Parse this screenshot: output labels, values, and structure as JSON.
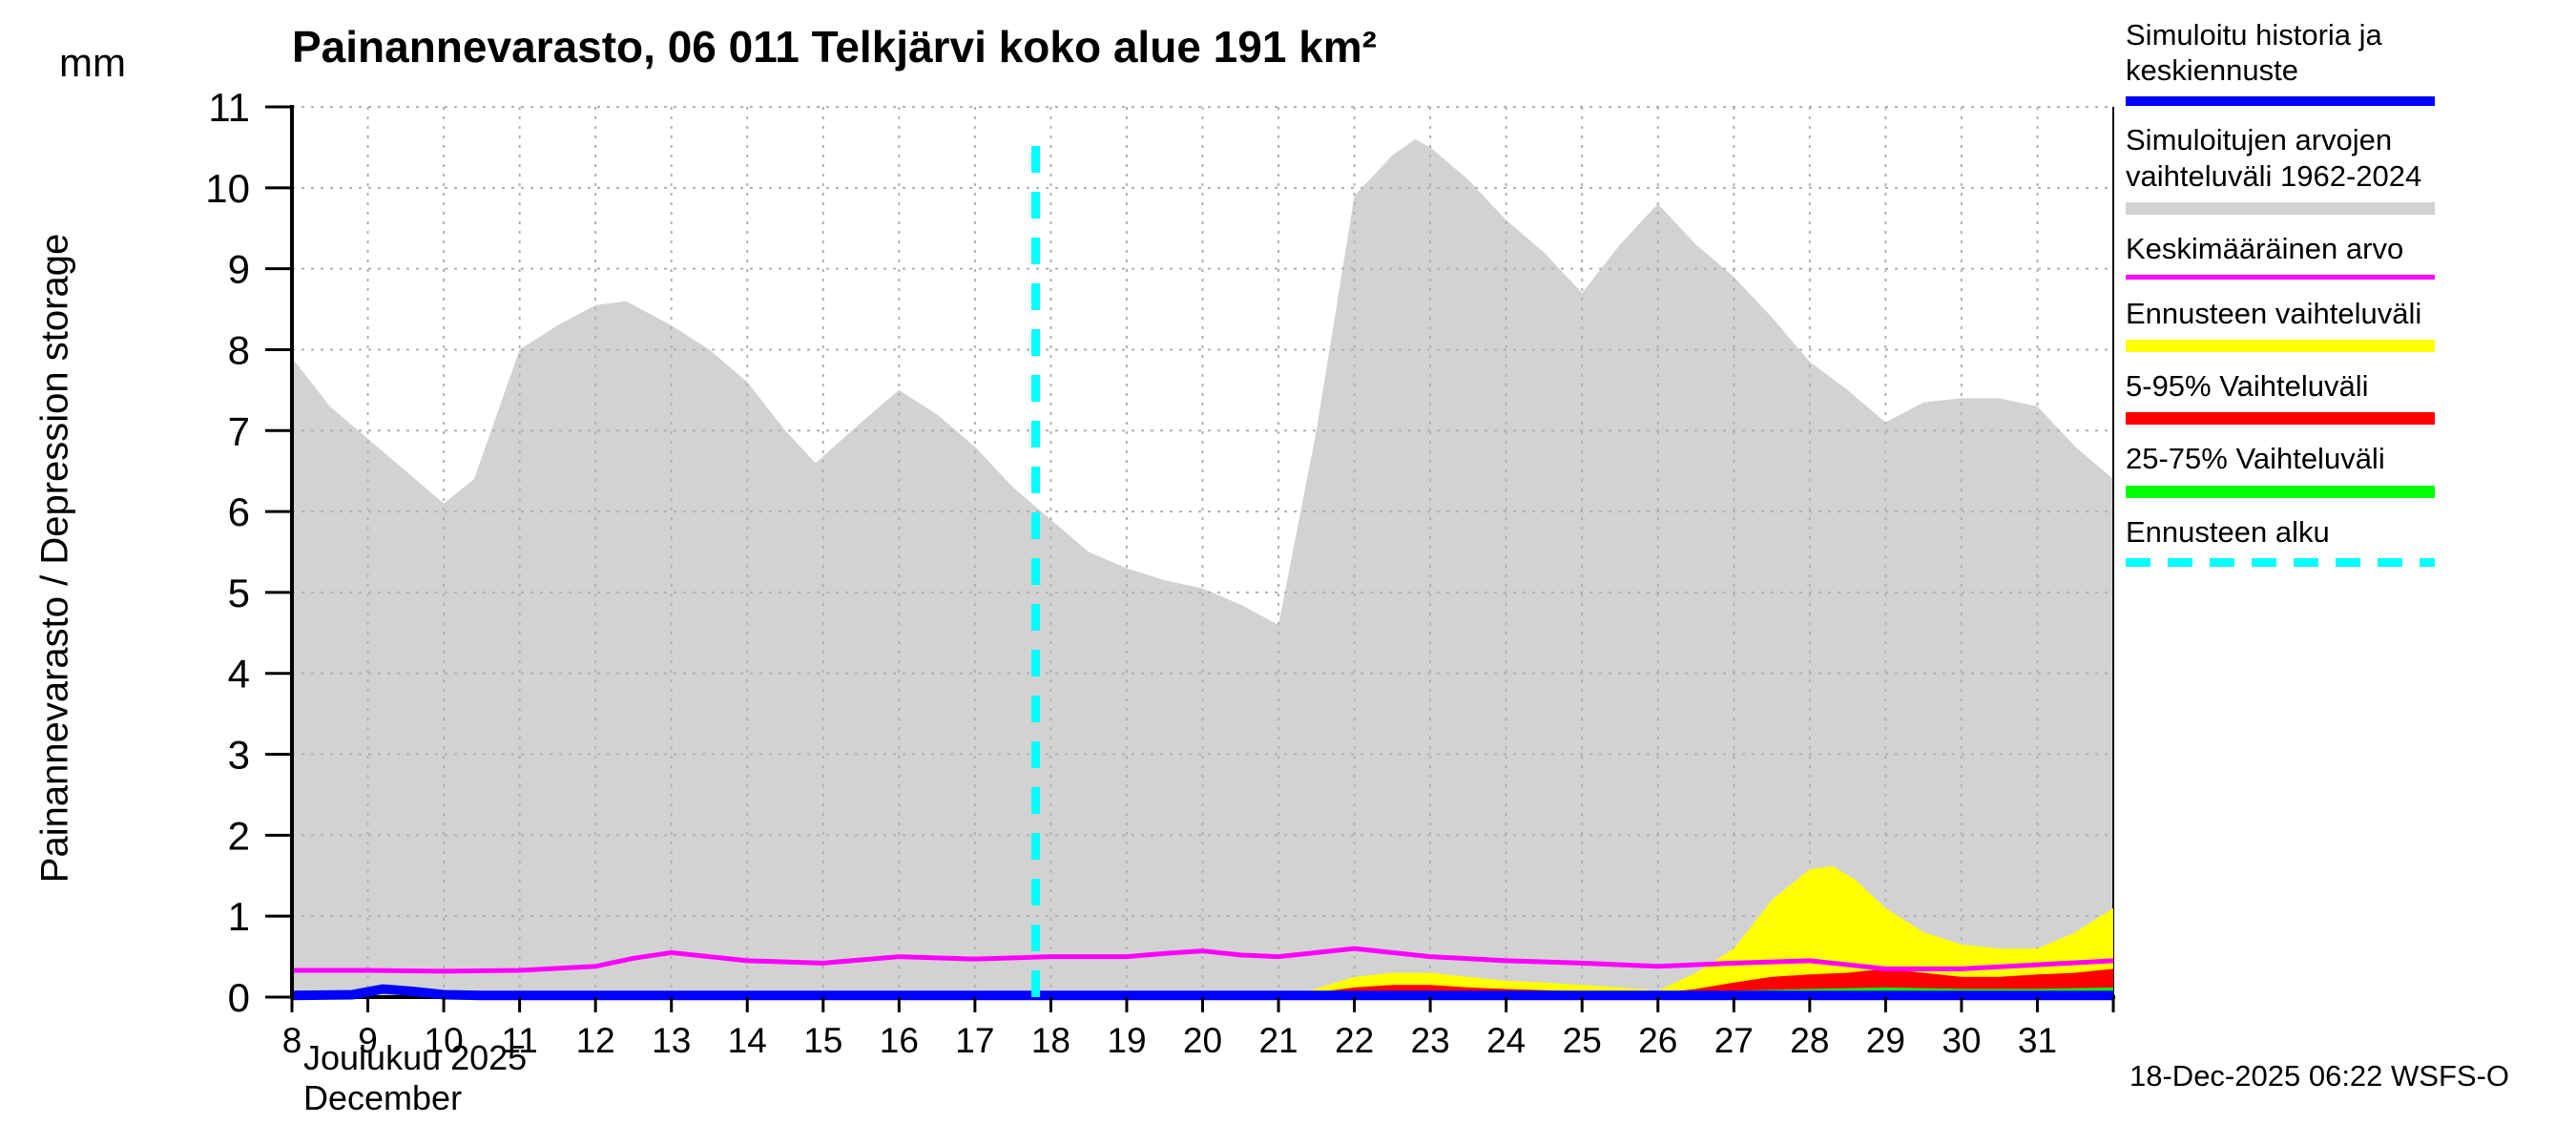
{
  "title": "Painannevarasto, 06 011 Telkjärvi koko alue 191 km²",
  "y_axis": {
    "unit": "mm",
    "label": "Painannevarasto / Depression storage",
    "min": 0,
    "max": 11,
    "ticks": [
      0,
      1,
      2,
      3,
      4,
      5,
      6,
      7,
      8,
      9,
      10,
      11
    ]
  },
  "x_axis": {
    "min": 8,
    "max": 32,
    "ticks": [
      8,
      9,
      10,
      11,
      12,
      13,
      14,
      15,
      16,
      17,
      18,
      19,
      20,
      21,
      22,
      23,
      24,
      25,
      26,
      27,
      28,
      29,
      30,
      31
    ],
    "month_fi": "Joulukuu 2025",
    "month_en": "December"
  },
  "footer": {
    "timestamp": "18-Dec-2025 06:22 WSFS-O"
  },
  "colors": {
    "background": "#ffffff",
    "grid": "#b0b0b0",
    "axis": "#000000",
    "sim_history": "#0000ff",
    "sim_range": "#d2d2d2",
    "mean": "#ff00ff",
    "forecast_range": "#ffff00",
    "range_5_95": "#ff0000",
    "range_25_75": "#00ff00",
    "forecast_start": "#00ffff"
  },
  "legend": [
    {
      "key": "sim-history",
      "label": "Simuloitu historia ja keskiennuste",
      "color": "#0000ff",
      "height": 10,
      "dashed": false
    },
    {
      "key": "sim-range",
      "label": "Simuloitujen arvojen vaihteluväli 1962-2024",
      "color": "#d2d2d2",
      "height": 13,
      "dashed": false
    },
    {
      "key": "mean",
      "label": "Keskimääräinen arvo",
      "color": "#ff00ff",
      "height": 5,
      "dashed": false
    },
    {
      "key": "forecast-range",
      "label": "Ennusteen vaihteluväli",
      "color": "#ffff00",
      "height": 13,
      "dashed": false
    },
    {
      "key": "range-5-95",
      "label": "5-95% Vaihteluväli",
      "color": "#ff0000",
      "height": 13,
      "dashed": false
    },
    {
      "key": "range-25-75",
      "label": "25-75% Vaihteluväli",
      "color": "#00ff00",
      "height": 13,
      "dashed": false
    },
    {
      "key": "forecast-start",
      "label": "Ennusteen alku",
      "color": "#00ffff",
      "height": 9,
      "dashed": true
    }
  ],
  "chart_data": {
    "type": "area",
    "title": "Painannevarasto, 06 011 Telkjärvi koko alue 191 km²",
    "xlabel": "Joulukuu 2025 / December (day of month)",
    "ylabel": "Painannevarasto / Depression storage (mm)",
    "xlim": [
      8,
      32
    ],
    "ylim": [
      0,
      11
    ],
    "grid": true,
    "legend_position": "right",
    "forecast_start_x": 17.8,
    "forecast_start_top_y": 10.75,
    "series": [
      {
        "key": "sim-range",
        "name": "Simuloitujen arvojen vaihteluväli 1962-2024",
        "kind": "area",
        "color": "#d2d2d2",
        "x": [
          8,
          8.5,
          9,
          9.5,
          10,
          10.4,
          11,
          11.5,
          12,
          12.4,
          13,
          13.5,
          14,
          14.5,
          14.9,
          15.5,
          16,
          16.5,
          17,
          17.5,
          18,
          18.5,
          19,
          19.5,
          20,
          20.5,
          21,
          21.5,
          22,
          22.5,
          22.8,
          23,
          23.5,
          24,
          24.5,
          25,
          25.5,
          26,
          26.5,
          27,
          27.5,
          28,
          28.5,
          29,
          29.5,
          30,
          30.5,
          31,
          31.5,
          32
        ],
        "y": [
          7.9,
          7.3,
          6.9,
          6.5,
          6.1,
          6.4,
          8.0,
          8.3,
          8.55,
          8.6,
          8.3,
          8.0,
          7.6,
          7.0,
          6.6,
          7.1,
          7.5,
          7.2,
          6.8,
          6.3,
          5.9,
          5.5,
          5.3,
          5.15,
          5.05,
          4.85,
          4.6,
          7.0,
          9.9,
          10.4,
          10.6,
          10.5,
          10.1,
          9.6,
          9.2,
          8.7,
          9.3,
          9.8,
          9.3,
          8.9,
          8.4,
          7.85,
          7.5,
          7.1,
          7.35,
          7.4,
          7.4,
          7.3,
          6.8,
          6.4
        ]
      },
      {
        "key": "forecast-range",
        "name": "Ennusteen vaihteluväli",
        "kind": "area",
        "color": "#ffff00",
        "x": [
          21.3,
          22,
          22.5,
          23,
          23.5,
          24,
          24.5,
          25,
          25.5,
          26,
          26.5,
          27,
          27.5,
          28,
          28.3,
          28.6,
          29,
          29.5,
          30,
          30.5,
          31,
          31.5,
          32
        ],
        "y": [
          0.05,
          0.25,
          0.3,
          0.3,
          0.25,
          0.2,
          0.18,
          0.15,
          0.12,
          0.08,
          0.3,
          0.6,
          1.2,
          1.58,
          1.62,
          1.45,
          1.1,
          0.8,
          0.65,
          0.6,
          0.6,
          0.8,
          1.1
        ]
      },
      {
        "key": "range-5-95",
        "name": "5-95% Vaihteluväli",
        "kind": "area",
        "color": "#ff0000",
        "x": [
          21.3,
          22,
          22.5,
          23,
          23.5,
          24,
          25,
          26,
          26.5,
          27,
          27.5,
          28,
          28.5,
          29,
          29.5,
          30,
          30.5,
          31,
          31.5,
          32
        ],
        "y": [
          0.03,
          0.12,
          0.15,
          0.15,
          0.12,
          0.1,
          0.07,
          0.05,
          0.1,
          0.18,
          0.25,
          0.28,
          0.3,
          0.35,
          0.3,
          0.25,
          0.25,
          0.28,
          0.3,
          0.35
        ]
      },
      {
        "key": "range-25-75",
        "name": "25-75% Vaihteluväli",
        "kind": "area",
        "color": "#00ff00",
        "x": [
          21.3,
          22,
          23,
          24,
          25,
          26,
          27,
          28,
          29,
          30,
          31,
          32
        ],
        "y": [
          0.02,
          0.06,
          0.07,
          0.05,
          0.04,
          0.03,
          0.08,
          0.1,
          0.12,
          0.1,
          0.1,
          0.12
        ]
      },
      {
        "key": "mean",
        "name": "Keskimääräinen arvo",
        "kind": "line",
        "color": "#ff00ff",
        "width": 5,
        "x": [
          8,
          9,
          10,
          11,
          12,
          12.5,
          13,
          13.5,
          14,
          15,
          16,
          17,
          18,
          19,
          19.5,
          20,
          20.5,
          21,
          21.5,
          22,
          22.5,
          23,
          24,
          25,
          26,
          27,
          28,
          28.5,
          29,
          30,
          31,
          32
        ],
        "y": [
          0.33,
          0.33,
          0.32,
          0.33,
          0.38,
          0.48,
          0.55,
          0.5,
          0.45,
          0.42,
          0.5,
          0.47,
          0.5,
          0.5,
          0.54,
          0.57,
          0.52,
          0.5,
          0.55,
          0.6,
          0.55,
          0.5,
          0.45,
          0.42,
          0.38,
          0.42,
          0.45,
          0.4,
          0.35,
          0.35,
          0.4,
          0.45
        ]
      },
      {
        "key": "sim-history",
        "name": "Simuloitu historia ja keskiennuste",
        "kind": "line",
        "color": "#0000ff",
        "width": 10,
        "x": [
          8,
          8.8,
          9.2,
          9.6,
          10,
          10.5,
          32
        ],
        "y": [
          0.02,
          0.03,
          0.1,
          0.07,
          0.03,
          0.02,
          0.02
        ]
      }
    ]
  }
}
